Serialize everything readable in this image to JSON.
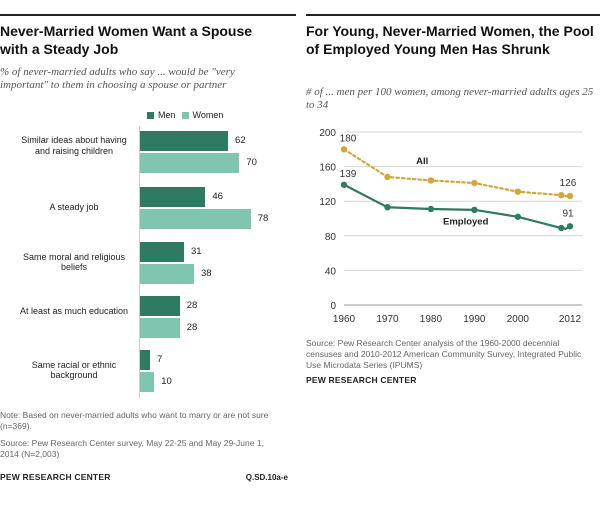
{
  "left_panel": {
    "title": "Never-Married Women Want a Spouse with a Steady Job",
    "subtitle": "% of never-married adults who say ... would be \"very important\" to them in choosing a spouse or partner",
    "note": "Note: Based on never-married adults who want to marry or are not sure (n=369).",
    "source": "Source: Pew Research Center survey, May 22-25 and May 29-June 1, 2014 (N=2,003)",
    "brand": "PEW RESEARCH CENTER",
    "code": "Q.SD.10a-e"
  },
  "right_panel": {
    "title": "For Young, Never-Married Women, the Pool of Employed Young Men Has Shrunk",
    "subtitle": "# of ... men per 100 women, among never-married adults ages 25 to 34",
    "source": "Source: Pew Research Center analysis of the 1960-2000 decennial censuses and 2010-2012 American Community Survey, Integrated Public Use Microdata Series (IPUMS)",
    "brand": "PEW RESEARCH CENTER"
  },
  "colors": {
    "men": "#2f7a62",
    "women": "#7fc5b0",
    "all": "#d1a73b",
    "employed": "#2f7a62"
  },
  "chart_data": [
    {
      "type": "bar",
      "orientation": "horizontal",
      "title": "Never-Married Women Want a Spouse with a Steady Job",
      "categories": [
        "Similar ideas about having and raising children",
        "A steady job",
        "Same moral and religious beliefs",
        "At least as much education",
        "Same racial or ethnic background"
      ],
      "series": [
        {
          "name": "Men",
          "values": [
            62,
            46,
            31,
            28,
            7
          ]
        },
        {
          "name": "Women",
          "values": [
            70,
            78,
            38,
            28,
            10
          ]
        }
      ],
      "xlim": [
        0,
        100
      ]
    },
    {
      "type": "line",
      "title": "For Young, Never-Married Women, the Pool of Employed Young Men Has Shrunk",
      "x": [
        1960,
        1970,
        1980,
        1990,
        2000,
        2010,
        2011,
        2012
      ],
      "xticks": [
        "1960",
        "1970",
        "1980",
        "1990",
        "2000",
        "2012"
      ],
      "yticks": [
        "0",
        "40",
        "80",
        "120",
        "160",
        "200"
      ],
      "ylim": [
        0,
        200
      ],
      "series": [
        {
          "name": "All",
          "values": [
            180,
            148,
            144,
            141,
            131,
            127,
            126,
            126
          ],
          "labels": {
            "first": "180",
            "last": "126"
          }
        },
        {
          "name": "Employed",
          "values": [
            139,
            113,
            111,
            110,
            102,
            89,
            88,
            91
          ],
          "labels": {
            "first": "139",
            "last": "91"
          }
        }
      ],
      "grid": true
    }
  ]
}
